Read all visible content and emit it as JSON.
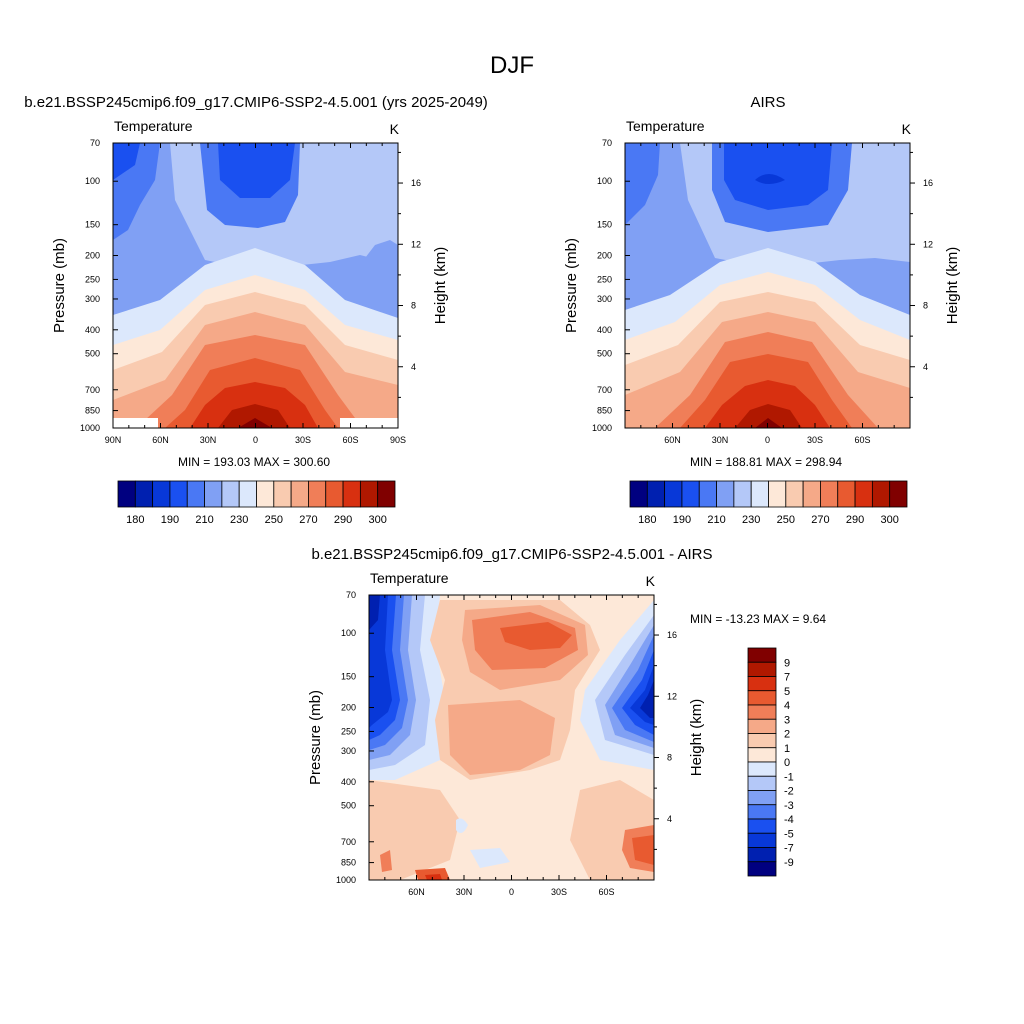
{
  "figure": {
    "title": "DJF"
  },
  "colors": {
    "abs_palette": [
      "#000080",
      "#0020b0",
      "#0838d8",
      "#1a50f0",
      "#4a78f4",
      "#80a0f4",
      "#b4c8f8",
      "#dce8fc",
      "#fde8d8",
      "#f9cbb0",
      "#f5a988",
      "#f07e58",
      "#e85a30",
      "#d83010",
      "#b01800",
      "#800000"
    ],
    "diff_palette": [
      "#000080",
      "#0020b0",
      "#0838d8",
      "#1a50f0",
      "#4a78f4",
      "#80a0f4",
      "#b4c8f8",
      "#dce8fc",
      "#fde8d8",
      "#f9cbb0",
      "#f5a988",
      "#f07e58",
      "#e85a30",
      "#d83010",
      "#b01800",
      "#800000"
    ]
  },
  "chart_data": [
    {
      "type": "heatmap",
      "panel_title": "b.e21.BSSP245cmip6.f09_g17.CMIP6-SSP2-4.5.001 (yrs 2025-2049)",
      "left_string": "Temperature",
      "right_string": "K",
      "ylabel": "Pressure (mb)",
      "ylabel_right": "Height (km)",
      "xticks": [
        "90N",
        "60N",
        "30N",
        "0",
        "30S",
        "60S",
        "90S"
      ],
      "xtick_values": [
        90,
        60,
        30,
        0,
        -30,
        -60,
        -90
      ],
      "xlim": [
        90,
        -90
      ],
      "yticks": [
        "70",
        "100",
        "150",
        "200",
        "250",
        "300",
        "400",
        "500",
        "700",
        "850",
        "1000"
      ],
      "ytick_values": [
        70,
        100,
        150,
        200,
        250,
        300,
        400,
        500,
        700,
        850,
        1000
      ],
      "ylim": [
        1000,
        70
      ],
      "yscale": "log",
      "yticks_right": [
        "4",
        "8",
        "12",
        "16"
      ],
      "ytick_right_values": [
        4,
        8,
        12,
        16
      ],
      "stats": "MIN = 193.03  MAX = 300.60",
      "min": 193.03,
      "max": 300.6,
      "colorbar_labels": [
        "180",
        "190",
        "210",
        "230",
        "250",
        "270",
        "290",
        "300"
      ],
      "colorbar_orientation": "horizontal"
    },
    {
      "type": "heatmap",
      "panel_title": "AIRS",
      "left_string": "Temperature",
      "right_string": "K",
      "ylabel": "Pressure (mb)",
      "ylabel_right": "Height (km)",
      "xticks": [
        "60N",
        "30N",
        "0",
        "30S",
        "60S"
      ],
      "xtick_values": [
        60,
        30,
        0,
        -30,
        -60
      ],
      "xlim": [
        90,
        -90
      ],
      "yticks": [
        "70",
        "100",
        "150",
        "200",
        "250",
        "300",
        "400",
        "500",
        "700",
        "850",
        "1000"
      ],
      "ytick_values": [
        70,
        100,
        150,
        200,
        250,
        300,
        400,
        500,
        700,
        850,
        1000
      ],
      "ylim": [
        1000,
        70
      ],
      "yscale": "log",
      "yticks_right": [
        "4",
        "8",
        "12",
        "16"
      ],
      "ytick_right_values": [
        4,
        8,
        12,
        16
      ],
      "stats": "MIN = 188.81  MAX = 298.94",
      "min": 188.81,
      "max": 298.94,
      "colorbar_labels": [
        "180",
        "190",
        "210",
        "230",
        "250",
        "270",
        "290",
        "300"
      ],
      "colorbar_orientation": "horizontal"
    },
    {
      "type": "heatmap",
      "panel_title": "b.e21.BSSP245cmip6.f09_g17.CMIP6-SSP2-4.5.001 - AIRS",
      "left_string": "Temperature",
      "right_string": "K",
      "ylabel": "Pressure (mb)",
      "ylabel_right": "Height (km)",
      "xticks": [
        "60N",
        "30N",
        "0",
        "30S",
        "60S"
      ],
      "xtick_values": [
        60,
        30,
        0,
        -30,
        -60
      ],
      "xlim": [
        90,
        -90
      ],
      "yticks": [
        "70",
        "100",
        "150",
        "200",
        "250",
        "300",
        "400",
        "500",
        "700",
        "850",
        "1000"
      ],
      "ytick_values": [
        70,
        100,
        150,
        200,
        250,
        300,
        400,
        500,
        700,
        850,
        1000
      ],
      "ylim": [
        1000,
        70
      ],
      "yscale": "log",
      "yticks_right": [
        "4",
        "8",
        "12",
        "16"
      ],
      "ytick_right_values": [
        4,
        8,
        12,
        16
      ],
      "stats": "MIN = -13.23  MAX =   9.64",
      "min": -13.23,
      "max": 9.64,
      "colorbar_labels": [
        "9",
        "7",
        "5",
        "4",
        "3",
        "2",
        "1",
        "0",
        "-1",
        "-2",
        "-3",
        "-4",
        "-5",
        "-7",
        "-9"
      ],
      "colorbar_orientation": "vertical"
    }
  ]
}
